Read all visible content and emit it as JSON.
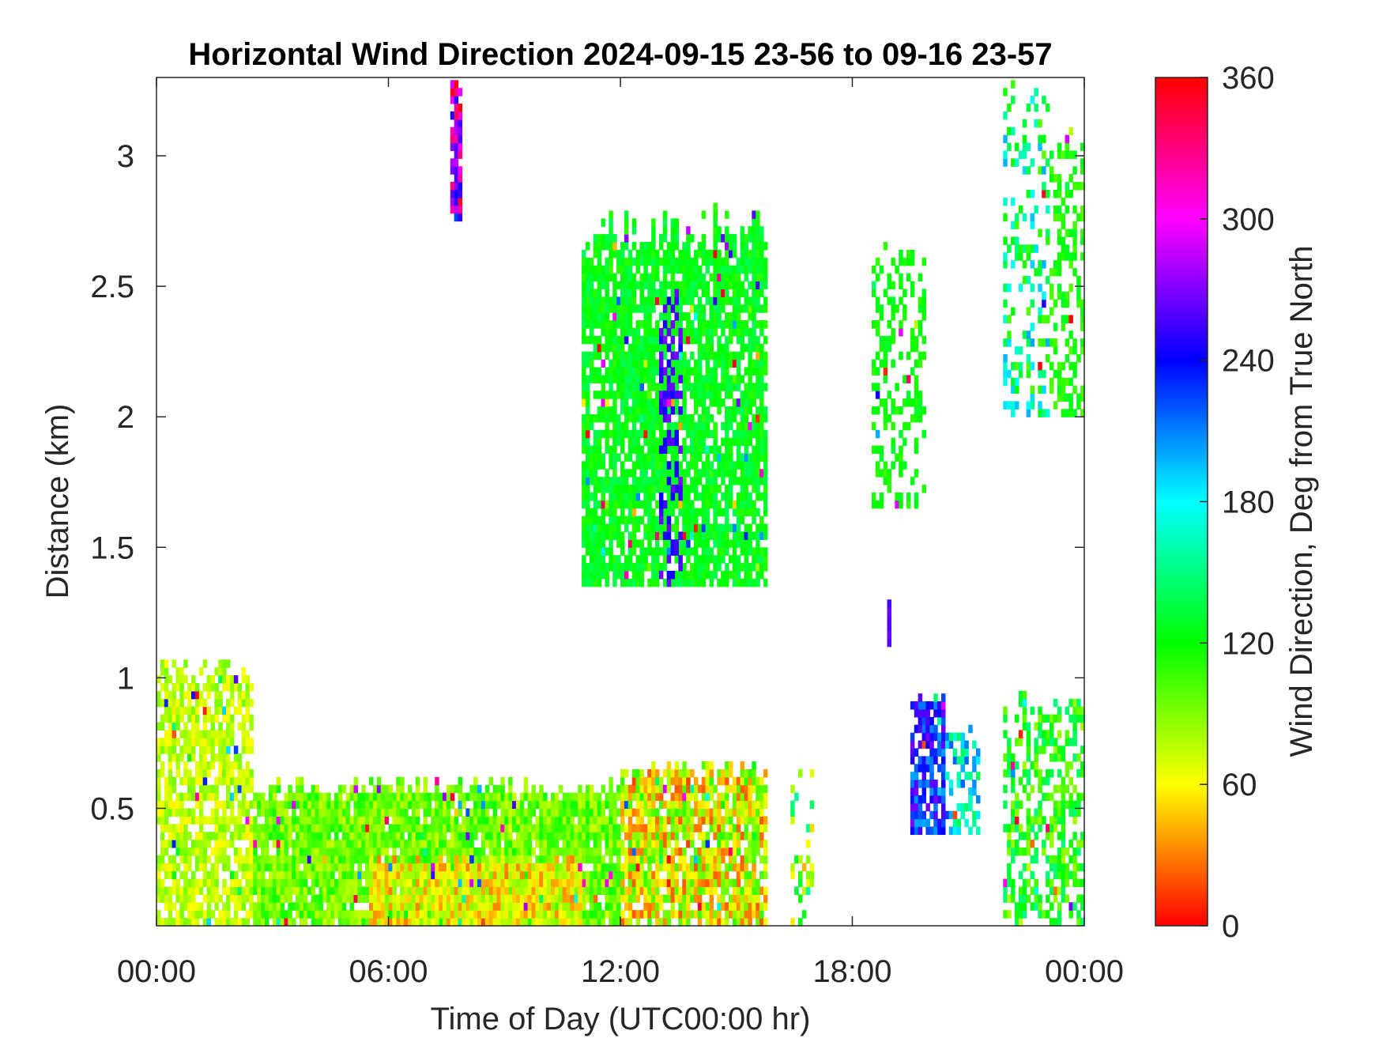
{
  "chart_data": {
    "type": "heatmap",
    "title": "Horizontal Wind Direction 2024-09-15 23-56 to 09-16 23-57",
    "xlabel": "Time of Day (UTC00:00 hr)",
    "ylabel": "Distance (km)",
    "x_range_hours": [
      0,
      24
    ],
    "ylim": [
      0.05,
      3.3
    ],
    "x_ticks": [
      {
        "value": 0,
        "label": "00:00"
      },
      {
        "value": 6,
        "label": "06:00"
      },
      {
        "value": 12,
        "label": "12:00"
      },
      {
        "value": 18,
        "label": "18:00"
      },
      {
        "value": 24,
        "label": "00:00"
      }
    ],
    "y_ticks": [
      {
        "value": 0.5,
        "label": "0.5"
      },
      {
        "value": 1,
        "label": "1"
      },
      {
        "value": 1.5,
        "label": "1.5"
      },
      {
        "value": 2,
        "label": "2"
      },
      {
        "value": 2.5,
        "label": "2.5"
      },
      {
        "value": 3,
        "label": "3"
      }
    ],
    "grid": false,
    "colorbar": {
      "label": "Wind Direction, Deg from True North",
      "range": [
        0,
        360
      ],
      "ticks": [
        {
          "value": 0,
          "label": "0"
        },
        {
          "value": 60,
          "label": "60"
        },
        {
          "value": 120,
          "label": "120"
        },
        {
          "value": 180,
          "label": "180"
        },
        {
          "value": 240,
          "label": "240"
        },
        {
          "value": 300,
          "label": "300"
        },
        {
          "value": 360,
          "label": "360"
        }
      ],
      "colormap": [
        "#ff0000",
        "#ffff00",
        "#00ff00",
        "#00ffff",
        "#0000ff",
        "#ff00ff",
        "#ff0000"
      ],
      "placement": "right"
    },
    "regions": [
      {
        "t0": 0.0,
        "t1": 2.5,
        "z0": 0.05,
        "z1": 1.1,
        "dir": 75,
        "spread": 18,
        "density": 0.75
      },
      {
        "t0": 2.5,
        "t1": 12.0,
        "z0": 0.05,
        "z1": 0.6,
        "dir": 95,
        "spread": 22,
        "density": 0.92
      },
      {
        "t0": 5.5,
        "t1": 11.0,
        "z0": 0.05,
        "z1": 0.3,
        "dir": 60,
        "spread": 30,
        "density": 0.95
      },
      {
        "t0": 12.0,
        "t1": 15.8,
        "z0": 0.05,
        "z1": 0.68,
        "dir": 65,
        "spread": 45,
        "density": 0.85
      },
      {
        "t0": 11.0,
        "t1": 15.8,
        "z0": 1.35,
        "z1": 2.8,
        "dir": 125,
        "spread": 15,
        "density": 0.8
      },
      {
        "t0": 13.0,
        "t1": 13.6,
        "z0": 1.35,
        "z1": 2.5,
        "dir": 255,
        "spread": 15,
        "density": 0.45
      },
      {
        "t0": 7.6,
        "t1": 7.9,
        "z0": 2.75,
        "z1": 3.3,
        "dir": 300,
        "spread": 60,
        "density": 0.85
      },
      {
        "t0": 18.5,
        "t1": 19.9,
        "z0": 1.65,
        "z1": 2.7,
        "dir": 120,
        "spread": 12,
        "density": 0.35
      },
      {
        "t0": 19.5,
        "t1": 20.4,
        "z0": 0.4,
        "z1": 0.95,
        "dir": 235,
        "spread": 35,
        "density": 0.75
      },
      {
        "t0": 20.4,
        "t1": 21.3,
        "z0": 0.4,
        "z1": 0.82,
        "dir": 180,
        "spread": 40,
        "density": 0.4
      },
      {
        "t0": 21.9,
        "t1": 23.1,
        "z0": 2.0,
        "z1": 3.3,
        "dir": 150,
        "spread": 50,
        "density": 0.3
      },
      {
        "t0": 23.1,
        "t1": 24.0,
        "z0": 2.0,
        "z1": 3.1,
        "dir": 115,
        "spread": 15,
        "density": 0.45
      },
      {
        "t0": 21.9,
        "t1": 24.0,
        "z0": 0.05,
        "z1": 0.95,
        "dir": 115,
        "spread": 35,
        "density": 0.5
      },
      {
        "t0": 16.4,
        "t1": 17.0,
        "z0": 0.05,
        "z1": 0.65,
        "dir": 100,
        "spread": 60,
        "density": 0.2
      },
      {
        "t0": 18.9,
        "t1": 19.0,
        "z0": 1.12,
        "z1": 1.3,
        "dir": 265,
        "spread": 8,
        "density": 0.9
      }
    ]
  }
}
